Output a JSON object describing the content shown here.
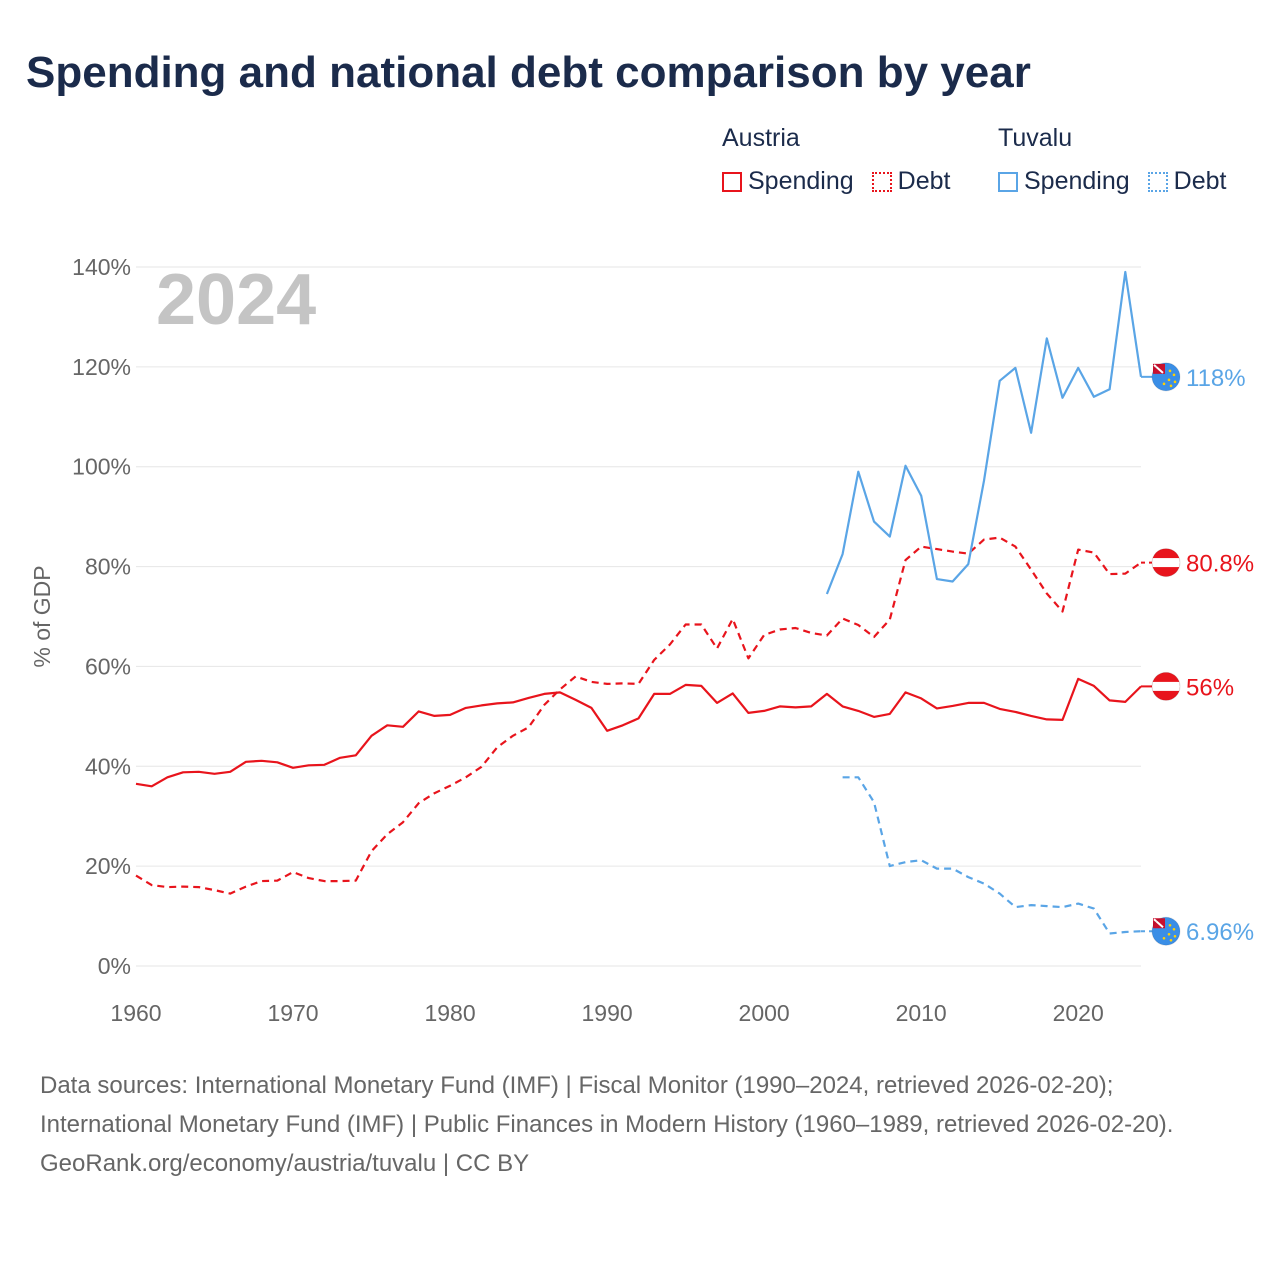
{
  "title": "Spending and national debt comparison by year",
  "legend": {
    "austria": {
      "country": "Austria",
      "spending": "Spending",
      "debt": "Debt"
    },
    "tuvalu": {
      "country": "Tuvalu",
      "spending": "Spending",
      "debt": "Debt"
    }
  },
  "colors": {
    "austria": "#e8141c",
    "tuvalu": "#5aa5e6",
    "year_label": "#c4c4c4",
    "grid": "#e6e6e6",
    "axis_text": "#666666"
  },
  "chart_data": {
    "type": "line",
    "title": "Spending and national debt comparison by year",
    "ylabel": "% of GDP",
    "xlabel": "",
    "year_label": "2024",
    "xlim": [
      1960,
      2024
    ],
    "ylim": [
      0,
      140
    ],
    "x_ticks": [
      "1960",
      "1970",
      "1980",
      "1990",
      "2000",
      "2010",
      "2020"
    ],
    "x_tick_values": [
      1960,
      1970,
      1980,
      1990,
      2000,
      2010,
      2020
    ],
    "y_ticks": [
      "0%",
      "20%",
      "40%",
      "60%",
      "80%",
      "100%",
      "120%",
      "140%"
    ],
    "y_tick_values": [
      0,
      20,
      40,
      60,
      80,
      100,
      120,
      140
    ],
    "series": [
      {
        "name": "Austria Spending",
        "country": "austria",
        "style": "solid",
        "end_label": "56%",
        "x": [
          1960,
          1961,
          1962,
          1963,
          1964,
          1965,
          1966,
          1967,
          1968,
          1969,
          1970,
          1971,
          1972,
          1973,
          1974,
          1975,
          1976,
          1977,
          1978,
          1979,
          1980,
          1981,
          1982,
          1983,
          1984,
          1985,
          1986,
          1987,
          1988,
          1989,
          1990,
          1991,
          1992,
          1993,
          1994,
          1995,
          1996,
          1997,
          1998,
          1999,
          2000,
          2001,
          2002,
          2003,
          2004,
          2005,
          2006,
          2007,
          2008,
          2009,
          2010,
          2011,
          2012,
          2013,
          2014,
          2015,
          2016,
          2017,
          2018,
          2019,
          2020,
          2021,
          2022,
          2023,
          2024
        ],
        "values": [
          36.5,
          36,
          37.8,
          38.8,
          38.9,
          38.5,
          38.9,
          40.9,
          41.1,
          40.8,
          39.7,
          40.2,
          40.3,
          41.7,
          42.2,
          46.1,
          48.2,
          47.9,
          51,
          50.1,
          50.3,
          51.7,
          52.2,
          52.6,
          52.8,
          53.7,
          54.5,
          54.8,
          53.3,
          51.7,
          47.1,
          48.2,
          49.6,
          54.5,
          54.5,
          56.3,
          56.1,
          52.7,
          54.6,
          50.7,
          51.1,
          52,
          51.8,
          52,
          54.5,
          52,
          51.1,
          49.9,
          50.5,
          54.8,
          53.6,
          51.6,
          52.1,
          52.7,
          52.7,
          51.5,
          50.9,
          50.1,
          49.4,
          49.3,
          57.5,
          56.1,
          53.2,
          52.9,
          56
        ]
      },
      {
        "name": "Austria Debt",
        "country": "austria",
        "style": "dashed",
        "end_label": "80.8%",
        "x": [
          1960,
          1961,
          1962,
          1963,
          1964,
          1965,
          1966,
          1967,
          1968,
          1969,
          1970,
          1971,
          1972,
          1973,
          1974,
          1975,
          1976,
          1977,
          1978,
          1979,
          1980,
          1981,
          1982,
          1983,
          1984,
          1985,
          1986,
          1987,
          1988,
          1989,
          1990,
          1991,
          1992,
          1993,
          1994,
          1995,
          1996,
          1997,
          1998,
          1999,
          2000,
          2001,
          2002,
          2003,
          2004,
          2005,
          2006,
          2007,
          2008,
          2009,
          2010,
          2011,
          2012,
          2013,
          2014,
          2015,
          2016,
          2017,
          2018,
          2019,
          2020,
          2021,
          2022,
          2023,
          2024
        ],
        "values": [
          18.1,
          16.2,
          15.8,
          15.9,
          15.8,
          15.2,
          14.5,
          15.9,
          17,
          17.1,
          18.8,
          17.6,
          17,
          17,
          17.1,
          23,
          26.4,
          28.8,
          32.6,
          34.6,
          36.1,
          37.8,
          39.9,
          43.8,
          46.1,
          47.8,
          52.3,
          55.4,
          58,
          56.9,
          56.5,
          56.6,
          56.5,
          61.3,
          64.4,
          68.4,
          68.4,
          63.6,
          69.5,
          61.6,
          66.3,
          67.4,
          67.7,
          66.7,
          66.2,
          69.6,
          68.3,
          65.9,
          69.4,
          81.3,
          84,
          83.5,
          83,
          82.6,
          85.4,
          85.8,
          84,
          79.4,
          74.6,
          71,
          83.4,
          82.8,
          78.5,
          78.6,
          80.8
        ]
      },
      {
        "name": "Tuvalu Spending",
        "country": "tuvalu",
        "style": "solid",
        "end_label": "118%",
        "x": [
          2004,
          2005,
          2006,
          2007,
          2008,
          2009,
          2010,
          2011,
          2012,
          2013,
          2014,
          2015,
          2016,
          2017,
          2018,
          2019,
          2020,
          2021,
          2022,
          2023,
          2024
        ],
        "values": [
          74.5,
          82.5,
          99,
          89,
          86,
          100.2,
          94.2,
          77.5,
          77,
          80.5,
          97.2,
          117.2,
          119.8,
          106.8,
          125.7,
          113.8,
          119.8,
          114,
          115.5,
          139,
          118
        ]
      },
      {
        "name": "Tuvalu Debt",
        "country": "tuvalu",
        "style": "dashed",
        "end_label": "6.96%",
        "x": [
          2005,
          2006,
          2007,
          2008,
          2009,
          2010,
          2011,
          2012,
          2013,
          2014,
          2015,
          2016,
          2017,
          2018,
          2019,
          2020,
          2021,
          2022,
          2023,
          2024
        ],
        "values": [
          37.8,
          37.8,
          32.8,
          20,
          20.8,
          21.2,
          19.5,
          19.5,
          17.8,
          16.5,
          14.5,
          11.8,
          12.2,
          12,
          11.8,
          12.5,
          11.5,
          6.5,
          6.8,
          6.96
        ]
      }
    ]
  },
  "footer": {
    "sources": "Data sources: International Monetary Fund (IMF) | Fiscal Monitor (1990–2024, retrieved 2026-02-20); International Monetary Fund (IMF) | Public Finances in Modern History (1960–1989, retrieved 2026-02-20).",
    "credit": "GeoRank.org/economy/austria/tuvalu | CC BY"
  }
}
